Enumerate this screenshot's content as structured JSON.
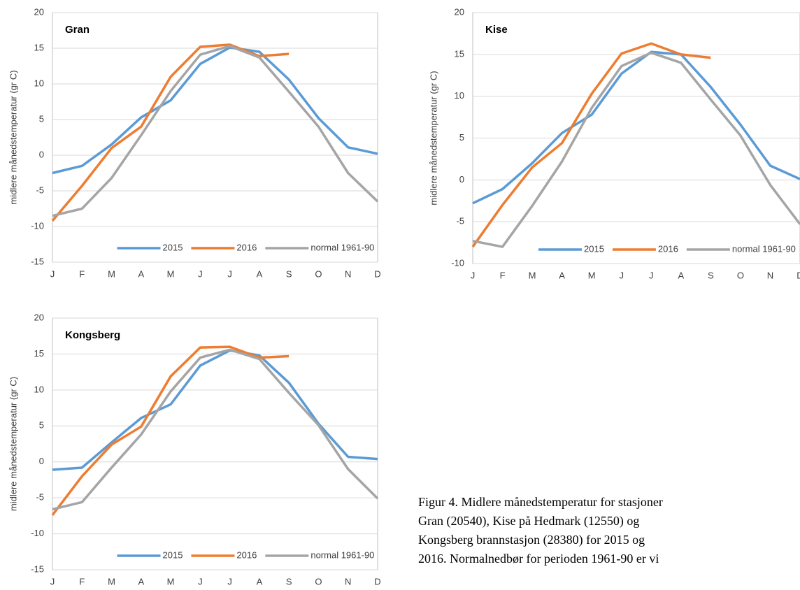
{
  "chart_data": [
    {
      "type": "line",
      "title": "Gran",
      "y_label": "midlere månedstemperatur (gr C)",
      "categories": [
        "J",
        "F",
        "M",
        "A",
        "M",
        "J",
        "J",
        "A",
        "S",
        "O",
        "N",
        "D"
      ],
      "series": [
        {
          "name": "2015",
          "color": "#5b9bd5",
          "values": [
            -2.5,
            -1.5,
            1.5,
            5.3,
            7.7,
            12.8,
            15.1,
            14.5,
            10.6,
            5.2,
            1.1,
            0.2
          ]
        },
        {
          "name": "2016",
          "color": "#ed7d31",
          "values": [
            -9.2,
            -4.3,
            1.0,
            4.0,
            11.0,
            15.2,
            15.5,
            13.9,
            14.2,
            null,
            null,
            null
          ]
        },
        {
          "name": "normal 1961-90",
          "color": "#a5a5a5",
          "values": [
            -8.5,
            -7.5,
            -3.2,
            2.8,
            9.0,
            14.1,
            15.3,
            13.7,
            8.9,
            4.0,
            -2.5,
            -6.5
          ]
        }
      ],
      "ylim": [
        -15,
        20
      ],
      "yticks": [
        -15,
        -10,
        -5,
        0,
        5,
        10,
        15,
        20
      ],
      "grid": true,
      "legend": "lower center"
    },
    {
      "type": "line",
      "title": "Kise",
      "y_label": "midlere månedstemperatur (gr C)",
      "categories": [
        "J",
        "F",
        "M",
        "A",
        "M",
        "J",
        "J",
        "A",
        "S",
        "O",
        "N",
        "D"
      ],
      "series": [
        {
          "name": "2015",
          "color": "#5b9bd5",
          "values": [
            -2.8,
            -1.1,
            2.0,
            5.6,
            7.8,
            12.7,
            15.3,
            15.0,
            11.1,
            6.6,
            1.7,
            0.1
          ]
        },
        {
          "name": "2016",
          "color": "#ed7d31",
          "values": [
            -8.0,
            -3.0,
            1.5,
            4.4,
            10.3,
            15.1,
            16.3,
            15.0,
            14.6,
            null,
            null,
            null
          ]
        },
        {
          "name": "normal 1961-90",
          "color": "#a5a5a5",
          "values": [
            -7.3,
            -8.0,
            -3.1,
            2.2,
            8.6,
            13.6,
            15.2,
            14.0,
            9.6,
            5.3,
            -0.6,
            -5.3
          ]
        }
      ],
      "ylim": [
        -10,
        20
      ],
      "yticks": [
        -10,
        -5,
        0,
        5,
        10,
        15,
        20
      ],
      "grid": true,
      "legend": "lower center"
    },
    {
      "type": "line",
      "title": "Kongsberg",
      "y_label": "midlere månedstemperatur (gr C)",
      "categories": [
        "J",
        "F",
        "M",
        "A",
        "M",
        "J",
        "J",
        "A",
        "S",
        "O",
        "N",
        "D"
      ],
      "series": [
        {
          "name": "2015",
          "color": "#5b9bd5",
          "values": [
            -1.1,
            -0.8,
            2.7,
            6.1,
            8.0,
            13.4,
            15.5,
            14.8,
            11.0,
            5.3,
            0.7,
            0.4
          ]
        },
        {
          "name": "2016",
          "color": "#ed7d31",
          "values": [
            -7.4,
            -2.0,
            2.4,
            4.9,
            11.9,
            15.9,
            16.0,
            14.5,
            14.7,
            null,
            null,
            null
          ]
        },
        {
          "name": "normal 1961-90",
          "color": "#a5a5a5",
          "values": [
            -6.6,
            -5.6,
            -0.8,
            3.8,
            9.8,
            14.5,
            15.6,
            14.3,
            9.6,
            5.1,
            -1.0,
            -5.1
          ]
        }
      ],
      "ylim": [
        -15,
        20
      ],
      "yticks": [
        -15,
        -10,
        -5,
        0,
        5,
        10,
        15,
        20
      ],
      "grid": true,
      "legend": "lower center"
    }
  ],
  "caption": [
    "Figur 4. Midlere månedstemperatur for stasjoner",
    "Gran (20540), Kise på Hedmark (12550) og",
    "Kongsberg brannstasjon (28380) for 2015 og",
    "2016. Normalnedbør for perioden 1961-90 er vi"
  ]
}
